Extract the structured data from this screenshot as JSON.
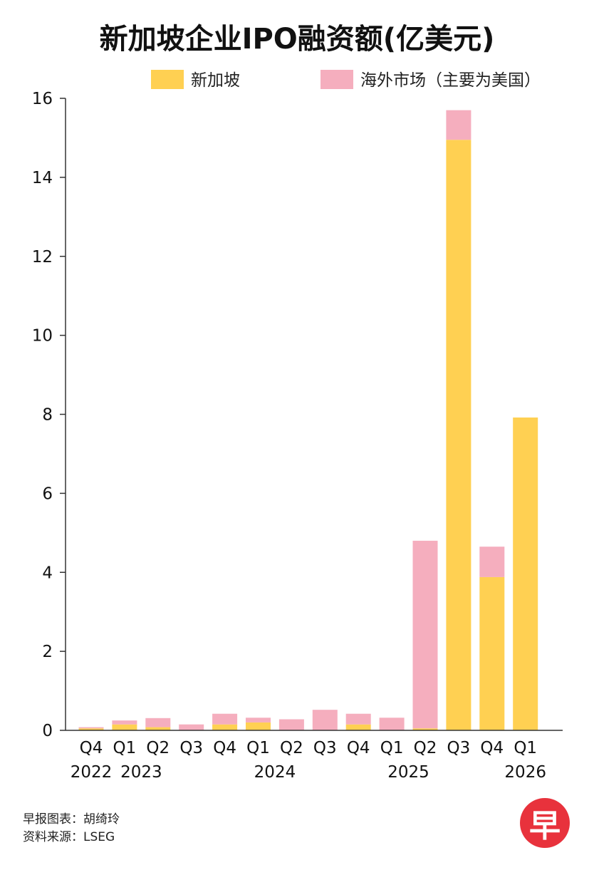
{
  "chart_data": {
    "type": "bar",
    "stacked": true,
    "title": "新加坡企业IPO融资额(亿美元)",
    "categories": [
      "Q4",
      "Q1",
      "Q2",
      "Q3",
      "Q4",
      "Q1",
      "Q2",
      "Q3",
      "Q4",
      "Q1",
      "Q2",
      "Q3",
      "Q4",
      "Q1"
    ],
    "year_labels": [
      {
        "text": "2022",
        "index": 0
      },
      {
        "text": "2023",
        "index": 1.5
      },
      {
        "text": "2024",
        "index": 5.5
      },
      {
        "text": "2025",
        "index": 9.5
      },
      {
        "text": "2026",
        "index": 13
      }
    ],
    "series": [
      {
        "name": "新加坡",
        "color": "#FFD052",
        "values": [
          0.05,
          0.15,
          0.08,
          0.0,
          0.15,
          0.2,
          0.0,
          0.0,
          0.15,
          0.0,
          0.05,
          14.95,
          3.88,
          7.92
        ]
      },
      {
        "name": "海外市场（主要为美国）",
        "color": "#F5AEBE",
        "values": [
          0.03,
          0.1,
          0.23,
          0.15,
          0.27,
          0.12,
          0.28,
          0.52,
          0.27,
          0.32,
          4.75,
          0.75,
          0.77,
          0.0
        ]
      }
    ],
    "ylim": [
      0,
      16
    ],
    "yticks": [
      0,
      2,
      4,
      6,
      8,
      10,
      12,
      14,
      16
    ],
    "legend_position": "top"
  },
  "footer": {
    "credit": "早报图表：胡绮玲",
    "source": "资料来源：LSEG"
  },
  "logo_text": "早"
}
